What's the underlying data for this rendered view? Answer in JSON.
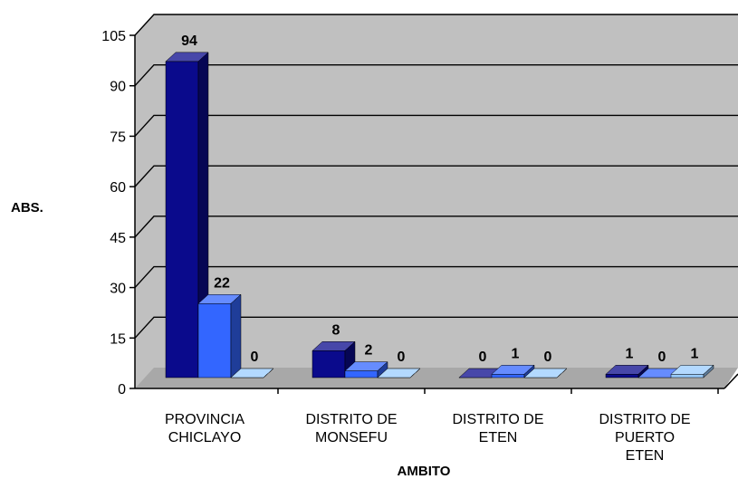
{
  "chart_data": {
    "type": "bar",
    "title": "",
    "xlabel": "AMBITO",
    "ylabel": "ABS.",
    "ylim": [
      0,
      105
    ],
    "yticks": [
      0,
      15,
      30,
      45,
      60,
      75,
      90,
      105
    ],
    "grid": true,
    "categories": [
      [
        "PROVINCIA",
        "CHICLAYO"
      ],
      [
        "DISTRITO DE",
        "MONSEFU"
      ],
      [
        "DISTRITO DE",
        "ETEN"
      ],
      [
        "DISTRITO DE",
        "PUERTO",
        "ETEN"
      ]
    ],
    "series": [
      {
        "values": [
          94,
          8,
          0,
          1
        ],
        "color": "#0a0a8c"
      },
      {
        "values": [
          22,
          2,
          1,
          0
        ],
        "color": "#3366ff"
      },
      {
        "values": [
          0,
          0,
          0,
          1
        ],
        "color": "#99ccff"
      }
    ]
  }
}
